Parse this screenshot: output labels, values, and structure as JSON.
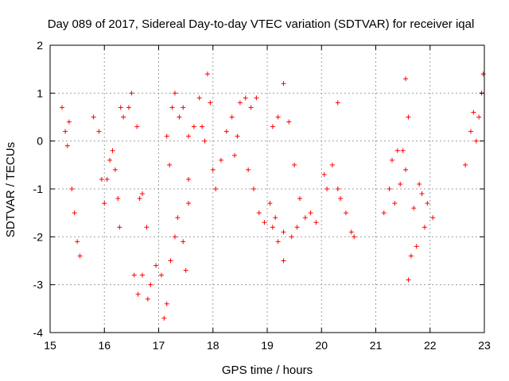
{
  "chart_data": {
    "type": "scatter",
    "title": "Day 089 of 2017, Sidereal Day-to-day VTEC variation (SDTVAR) for receiver iqal",
    "xlabel": "GPS time / hours",
    "ylabel": "SDTVAR / TECUs",
    "xlim": [
      15,
      23
    ],
    "ylim": [
      -4,
      2
    ],
    "xticks": [
      15,
      16,
      17,
      18,
      19,
      20,
      21,
      22,
      23
    ],
    "yticks": [
      -4,
      -3,
      -2,
      -1,
      0,
      1,
      2
    ],
    "grid": true,
    "marker": "+",
    "color": "#ff0000",
    "anchors": [
      [
        15.22,
        0.7
      ],
      [
        15.28,
        0.2
      ],
      [
        15.32,
        -0.1
      ],
      [
        15.35,
        0.4
      ],
      [
        15.4,
        -1.0
      ],
      [
        15.45,
        -1.5
      ],
      [
        15.5,
        -2.1
      ],
      [
        15.55,
        -2.4
      ],
      [
        15.8,
        0.5
      ],
      [
        15.9,
        0.2
      ],
      [
        15.95,
        -0.8
      ],
      [
        16.0,
        -1.3
      ],
      [
        16.05,
        -0.8
      ],
      [
        16.1,
        -0.4
      ],
      [
        16.15,
        -0.2
      ],
      [
        16.2,
        -0.6
      ],
      [
        16.25,
        -1.2
      ],
      [
        16.28,
        -1.8
      ],
      [
        16.3,
        0.7
      ],
      [
        16.35,
        0.5
      ],
      [
        16.45,
        0.7
      ],
      [
        16.5,
        1.0
      ],
      [
        16.6,
        0.3
      ],
      [
        16.65,
        -1.2
      ],
      [
        16.7,
        -1.1
      ],
      [
        16.78,
        -1.8
      ],
      [
        16.55,
        -2.8
      ],
      [
        16.62,
        -3.2
      ],
      [
        16.7,
        -2.8
      ],
      [
        16.8,
        -3.3
      ],
      [
        16.85,
        -3.0
      ],
      [
        16.95,
        -2.6
      ],
      [
        17.05,
        -2.8
      ],
      [
        17.1,
        -3.7
      ],
      [
        17.15,
        -3.4
      ],
      [
        17.22,
        -2.5
      ],
      [
        17.3,
        -2.0
      ],
      [
        17.35,
        -1.6
      ],
      [
        17.45,
        -2.1
      ],
      [
        17.5,
        -2.7
      ],
      [
        17.55,
        -1.3
      ],
      [
        17.55,
        -0.8
      ],
      [
        17.15,
        0.1
      ],
      [
        17.2,
        -0.5
      ],
      [
        17.25,
        0.7
      ],
      [
        17.3,
        1.0
      ],
      [
        17.38,
        0.5
      ],
      [
        17.45,
        0.7
      ],
      [
        17.55,
        0.1
      ],
      [
        17.65,
        0.3
      ],
      [
        17.75,
        0.9
      ],
      [
        17.8,
        0.3
      ],
      [
        17.85,
        0.0
      ],
      [
        17.9,
        1.4
      ],
      [
        17.95,
        0.8
      ],
      [
        18.0,
        -0.6
      ],
      [
        18.05,
        -1.0
      ],
      [
        18.15,
        -0.4
      ],
      [
        18.25,
        0.2
      ],
      [
        18.35,
        0.5
      ],
      [
        18.4,
        -0.3
      ],
      [
        18.45,
        0.1
      ],
      [
        18.5,
        0.8
      ],
      [
        18.6,
        0.9
      ],
      [
        18.7,
        0.7
      ],
      [
        18.8,
        0.9
      ],
      [
        18.65,
        -0.6
      ],
      [
        18.75,
        -1.0
      ],
      [
        18.85,
        -1.5
      ],
      [
        18.95,
        -1.7
      ],
      [
        19.05,
        -1.3
      ],
      [
        19.1,
        -1.8
      ],
      [
        19.2,
        -2.1
      ],
      [
        19.3,
        -2.5
      ],
      [
        19.15,
        -1.6
      ],
      [
        19.3,
        -1.9
      ],
      [
        19.45,
        -2.0
      ],
      [
        19.55,
        -1.8
      ],
      [
        19.1,
        0.3
      ],
      [
        19.2,
        0.5
      ],
      [
        19.3,
        1.2
      ],
      [
        19.4,
        0.4
      ],
      [
        19.5,
        -0.5
      ],
      [
        19.6,
        -1.2
      ],
      [
        19.7,
        -1.6
      ],
      [
        19.8,
        -1.5
      ],
      [
        19.9,
        -1.7
      ],
      [
        20.05,
        -0.7
      ],
      [
        20.1,
        -1.0
      ],
      [
        20.2,
        -0.5
      ],
      [
        20.3,
        -1.0
      ],
      [
        20.35,
        -1.2
      ],
      [
        20.3,
        0.8
      ],
      [
        20.45,
        -1.5
      ],
      [
        20.55,
        -1.9
      ],
      [
        20.6,
        -2.0
      ],
      [
        21.15,
        -1.5
      ],
      [
        21.25,
        -1.0
      ],
      [
        21.3,
        -0.4
      ],
      [
        21.35,
        -1.3
      ],
      [
        21.4,
        -0.2
      ],
      [
        21.45,
        -0.9
      ],
      [
        21.5,
        -0.2
      ],
      [
        21.55,
        -0.6
      ],
      [
        21.6,
        -2.9
      ],
      [
        21.65,
        -2.4
      ],
      [
        21.7,
        -1.4
      ],
      [
        21.75,
        -2.2
      ],
      [
        21.8,
        -0.9
      ],
      [
        21.85,
        -1.1
      ],
      [
        21.9,
        -1.8
      ],
      [
        21.95,
        -1.3
      ],
      [
        22.05,
        -1.6
      ],
      [
        21.55,
        1.3
      ],
      [
        21.6,
        0.5
      ],
      [
        22.65,
        -0.5
      ],
      [
        22.75,
        0.2
      ],
      [
        22.8,
        0.6
      ],
      [
        22.85,
        0.0
      ],
      [
        22.9,
        0.5
      ],
      [
        22.95,
        1.0
      ],
      [
        22.98,
        1.4
      ]
    ]
  }
}
